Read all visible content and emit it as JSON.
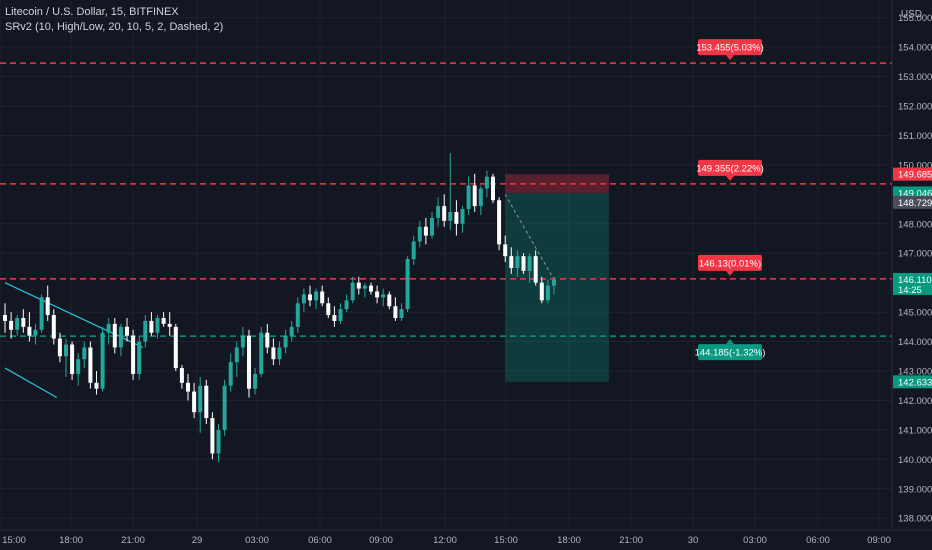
{
  "header": {
    "title": "Litecoin / U.S. Dollar, 15, BITFINEX",
    "indicator": "SRv2 (10, High/Low, 20, 10, 5, 2, Dashed, 2)"
  },
  "axis": {
    "currency_top": "USD",
    "price_ticks": [
      "155.000",
      "154.000",
      "153.000",
      "152.000",
      "151.000",
      "150.000",
      "148.000",
      "147.000",
      "145.000",
      "144.000",
      "143.000",
      "142.000",
      "141.000",
      "140.000",
      "139.000",
      "138.000"
    ],
    "time_ticks": [
      "15:00",
      "18:00",
      "21:00",
      "29",
      "03:00",
      "06:00",
      "09:00",
      "12:00",
      "15:00",
      "18:00",
      "21:00",
      "30",
      "03:00",
      "06:00",
      "09:00"
    ]
  },
  "colors": {
    "background": "#131722",
    "grid": "#1e2230",
    "up": "#26a69a",
    "down": "#ffffff",
    "resistance": "#f23645",
    "support": "#089981",
    "trendline": "#26c6da",
    "axis_text": "#b2b5be"
  },
  "levels": [
    {
      "name": "resistance-1",
      "price": 153.455,
      "label": "153.455(5.03%)",
      "type": "resistance"
    },
    {
      "name": "resistance-2",
      "price": 149.355,
      "label": "149.355(2.22%)",
      "type": "resistance"
    },
    {
      "name": "resistance-3",
      "price": 146.13,
      "label": "146.13(0.01%)",
      "type": "resistance"
    },
    {
      "name": "support-1",
      "price": 144.185,
      "label": "144.185(-1.32%)",
      "type": "support"
    }
  ],
  "price_tags": [
    {
      "price": 149.685,
      "text": "149.685",
      "bg": "#f23645",
      "fg": "#ffffff"
    },
    {
      "price": 149.046,
      "text": "149.046",
      "bg": "#089981",
      "fg": "#ffffff"
    },
    {
      "price": 148.729,
      "text": "148.729",
      "bg": "#4a4e5a",
      "fg": "#ffffff"
    },
    {
      "price": 146.11,
      "text": "146.110",
      "sub": "14:25",
      "bg": "#089981",
      "fg": "#ffffff"
    },
    {
      "price": 142.633,
      "text": "142.633",
      "bg": "#089981",
      "fg": "#ffffff"
    }
  ],
  "chart_data": {
    "type": "candlestick",
    "symbol": "Litecoin / U.S. Dollar",
    "interval": "15",
    "exchange": "BITFINEX",
    "ylim": [
      137.6,
      155.6
    ],
    "x_ticks": [
      "15:00",
      "18:00",
      "21:00",
      "29",
      "03:00",
      "06:00",
      "09:00",
      "12:00",
      "15:00",
      "18:00",
      "21:00",
      "30",
      "03:00",
      "06:00",
      "09:00"
    ],
    "candles": [
      [
        144.9,
        145.3,
        144.3,
        144.7
      ],
      [
        144.7,
        145.0,
        144.1,
        144.4
      ],
      [
        144.4,
        144.9,
        144.2,
        144.8
      ],
      [
        144.8,
        145.1,
        144.3,
        144.5
      ],
      [
        144.5,
        145.0,
        144.0,
        144.2
      ],
      [
        144.2,
        144.6,
        143.9,
        144.4
      ],
      [
        144.4,
        145.6,
        144.3,
        145.5
      ],
      [
        145.5,
        145.9,
        144.7,
        144.9
      ],
      [
        144.9,
        145.1,
        143.9,
        144.1
      ],
      [
        144.1,
        144.3,
        143.3,
        143.5
      ],
      [
        143.5,
        144.1,
        142.8,
        143.9
      ],
      [
        143.9,
        144.0,
        142.7,
        142.9
      ],
      [
        142.9,
        143.6,
        142.5,
        143.4
      ],
      [
        143.4,
        144.0,
        143.1,
        143.8
      ],
      [
        143.8,
        144.0,
        142.4,
        142.6
      ],
      [
        142.6,
        143.0,
        142.2,
        142.4
      ],
      [
        142.4,
        144.5,
        142.3,
        144.3
      ],
      [
        144.3,
        144.8,
        143.9,
        144.6
      ],
      [
        144.6,
        144.8,
        143.6,
        143.8
      ],
      [
        143.8,
        144.6,
        143.5,
        144.5
      ],
      [
        144.5,
        144.8,
        144.0,
        144.2
      ],
      [
        144.2,
        144.4,
        142.7,
        142.9
      ],
      [
        142.9,
        144.2,
        142.7,
        144.0
      ],
      [
        144.0,
        144.9,
        143.8,
        144.7
      ],
      [
        144.7,
        145.0,
        144.2,
        144.3
      ],
      [
        144.3,
        144.9,
        144.1,
        144.8
      ],
      [
        144.8,
        145.0,
        144.5,
        144.6
      ],
      [
        144.6,
        145.0,
        144.2,
        144.5
      ],
      [
        144.5,
        144.6,
        143.0,
        143.1
      ],
      [
        143.1,
        143.2,
        142.4,
        142.6
      ],
      [
        142.6,
        142.9,
        142.0,
        142.3
      ],
      [
        142.3,
        142.6,
        141.4,
        141.6
      ],
      [
        141.6,
        142.8,
        140.9,
        142.5
      ],
      [
        142.5,
        142.7,
        141.2,
        141.4
      ],
      [
        141.4,
        141.6,
        140.0,
        140.2
      ],
      [
        140.2,
        141.2,
        139.9,
        141.0
      ],
      [
        141.0,
        142.7,
        140.8,
        142.5
      ],
      [
        142.5,
        143.6,
        142.3,
        143.3
      ],
      [
        143.3,
        144.0,
        142.8,
        143.8
      ],
      [
        143.8,
        144.5,
        143.5,
        144.2
      ],
      [
        144.2,
        144.4,
        142.1,
        142.4
      ],
      [
        142.4,
        143.1,
        142.2,
        142.9
      ],
      [
        142.9,
        144.5,
        142.8,
        144.3
      ],
      [
        144.3,
        144.6,
        143.6,
        143.8
      ],
      [
        143.8,
        144.1,
        143.2,
        143.4
      ],
      [
        143.4,
        144.0,
        143.2,
        143.8
      ],
      [
        143.8,
        144.4,
        143.6,
        144.2
      ],
      [
        144.2,
        144.7,
        144.0,
        144.5
      ],
      [
        144.5,
        145.5,
        144.3,
        145.3
      ],
      [
        145.3,
        145.8,
        145.0,
        145.6
      ],
      [
        145.6,
        145.9,
        145.2,
        145.4
      ],
      [
        145.4,
        145.8,
        145.1,
        145.7
      ],
      [
        145.7,
        145.9,
        145.2,
        145.3
      ],
      [
        145.3,
        145.5,
        144.8,
        144.9
      ],
      [
        144.9,
        145.2,
        144.5,
        144.7
      ],
      [
        144.7,
        145.3,
        144.6,
        145.1
      ],
      [
        145.1,
        145.6,
        145.0,
        145.4
      ],
      [
        145.4,
        146.2,
        145.3,
        146.0
      ],
      [
        146.0,
        146.2,
        145.6,
        145.8
      ],
      [
        145.8,
        146.0,
        145.5,
        145.9
      ],
      [
        145.9,
        146.0,
        145.6,
        145.7
      ],
      [
        145.7,
        145.9,
        145.3,
        145.5
      ],
      [
        145.5,
        145.8,
        145.2,
        145.6
      ],
      [
        145.6,
        145.7,
        145.1,
        145.2
      ],
      [
        145.2,
        145.5,
        144.7,
        144.8
      ],
      [
        144.8,
        145.3,
        144.7,
        145.1
      ],
      [
        145.1,
        146.9,
        145.0,
        146.8
      ],
      [
        146.8,
        147.6,
        146.6,
        147.4
      ],
      [
        147.4,
        148.1,
        147.2,
        147.9
      ],
      [
        147.9,
        148.2,
        147.3,
        147.6
      ],
      [
        147.6,
        148.4,
        147.5,
        148.2
      ],
      [
        148.2,
        148.9,
        147.9,
        148.6
      ],
      [
        148.6,
        149.0,
        147.9,
        148.1
      ],
      [
        148.1,
        150.4,
        147.8,
        148.4
      ],
      [
        148.4,
        148.8,
        147.6,
        148.0
      ],
      [
        148.0,
        148.6,
        147.7,
        148.5
      ],
      [
        148.5,
        149.6,
        148.3,
        149.3
      ],
      [
        149.3,
        149.7,
        148.4,
        148.6
      ],
      [
        148.6,
        149.3,
        148.3,
        149.2
      ],
      [
        149.2,
        149.8,
        148.9,
        149.6
      ],
      [
        149.6,
        149.7,
        148.7,
        148.8
      ],
      [
        148.8,
        148.9,
        147.1,
        147.3
      ],
      [
        147.3,
        147.6,
        146.7,
        146.9
      ],
      [
        146.9,
        147.2,
        146.3,
        146.5
      ],
      [
        146.5,
        147.1,
        146.2,
        146.9
      ],
      [
        146.9,
        147.0,
        146.3,
        146.4
      ],
      [
        146.4,
        147.0,
        146.0,
        146.9
      ],
      [
        146.9,
        147.1,
        145.9,
        146.0
      ],
      [
        146.0,
        146.2,
        145.3,
        145.4
      ],
      [
        145.4,
        146.1,
        145.3,
        145.9
      ],
      [
        145.9,
        146.2,
        145.6,
        146.1
      ]
    ],
    "trendlines": [
      {
        "from": {
          "t": 0.0,
          "p": 146.0
        },
        "to": {
          "t": 22.6,
          "p": 143.8
        }
      },
      {
        "from": {
          "t": 0.0,
          "p": 143.1
        },
        "to": {
          "t": 8.5,
          "p": 142.1
        }
      }
    ],
    "short_position": {
      "entry": 149.046,
      "stop": 149.685,
      "target": 142.633,
      "from_t": 82.0,
      "to_t": 99.0
    },
    "projection_line": {
      "from": {
        "t": 82.0,
        "p": 149.0
      },
      "to": {
        "t": 90.0,
        "p": 146.1
      }
    }
  }
}
